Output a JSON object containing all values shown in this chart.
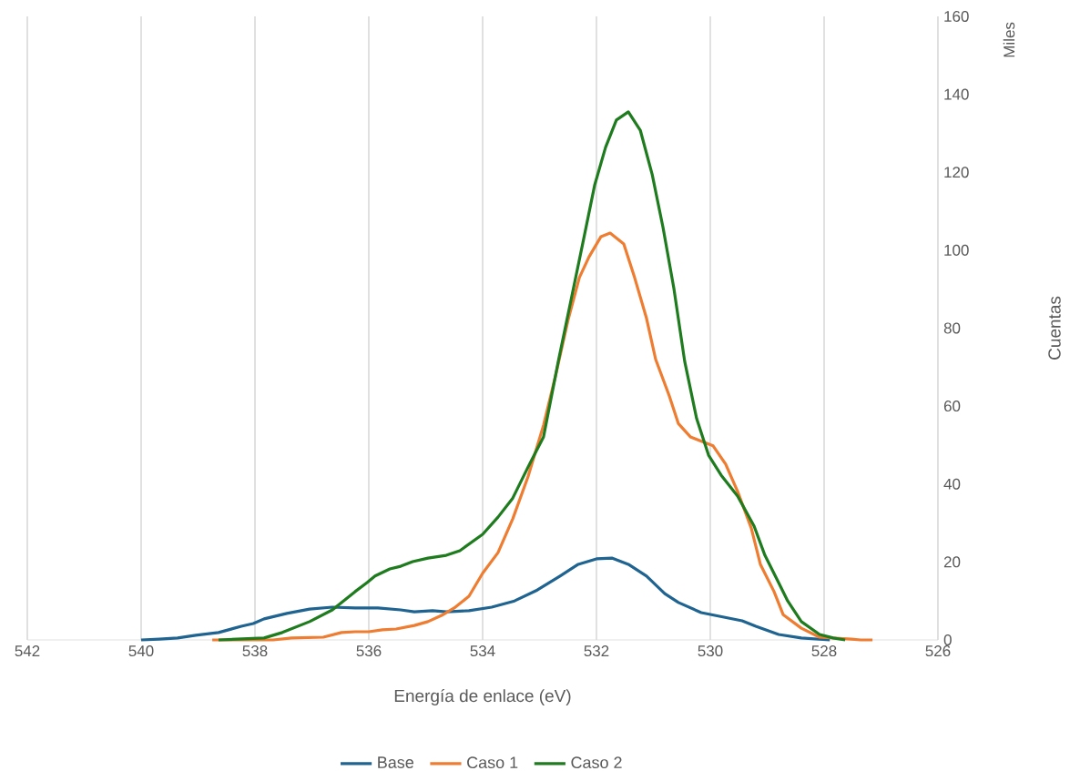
{
  "chart_data": {
    "type": "line",
    "xlabel": "Energía de enlace (eV)",
    "ylabel": "Cuentas",
    "annotations": [
      "Miles"
    ],
    "xlim": [
      542,
      526
    ],
    "xticks": [
      542,
      540,
      538,
      536,
      534,
      532,
      530,
      528,
      526
    ],
    "ylim": [
      0,
      160
    ],
    "yticks": [
      0,
      20,
      40,
      60,
      80,
      100,
      120,
      140,
      160
    ],
    "grid": "x",
    "legend": "bottom",
    "series": [
      {
        "name": "Base",
        "color": "#1f6391",
        "x": [
          540,
          539.68,
          539.36,
          539.04,
          538.64,
          538.24,
          538.03,
          537.84,
          537.44,
          537.04,
          536.64,
          536.24,
          535.84,
          535.44,
          535.2,
          534.88,
          534.64,
          534.24,
          533.84,
          533.44,
          533.04,
          532.64,
          532.32,
          532.0,
          531.73,
          531.44,
          531.12,
          530.8,
          530.56,
          530.16,
          529.68,
          529.44,
          529.2,
          528.8,
          528.4,
          527.9
        ],
        "values": [
          0,
          0.2,
          0.5,
          1.2,
          1.9,
          3.5,
          4.2,
          5.4,
          6.8,
          7.9,
          8.4,
          8.2,
          8.2,
          7.7,
          7.2,
          7.5,
          7.2,
          7.5,
          8.4,
          10.0,
          12.8,
          16.4,
          19.4,
          20.8,
          21.0,
          19.4,
          16.4,
          11.9,
          9.6,
          7.0,
          5.6,
          4.9,
          3.5,
          1.4,
          0.5,
          0
        ]
      },
      {
        "name": "Caso 1",
        "color": "#ee7d31",
        "x": [
          538.75,
          537.68,
          537.36,
          536.8,
          536.48,
          536.24,
          536.0,
          535.76,
          535.52,
          535.2,
          534.96,
          534.72,
          534.48,
          534.24,
          534.0,
          533.73,
          533.47,
          533.2,
          532.93,
          532.72,
          532.5,
          532.3,
          532.13,
          531.92,
          531.76,
          531.52,
          531.33,
          531.12,
          530.96,
          530.72,
          530.56,
          530.35,
          529.95,
          529.73,
          529.52,
          529.28,
          529.12,
          528.88,
          528.72,
          528.4,
          528.08,
          527.52,
          527.36,
          527.15
        ],
        "values": [
          0,
          0,
          0.5,
          0.7,
          1.9,
          2.1,
          2.1,
          2.6,
          2.8,
          3.7,
          4.7,
          6.3,
          8.4,
          11.2,
          17.1,
          22.4,
          31.1,
          42.0,
          55.1,
          67.7,
          82,
          93,
          98.3,
          103.5,
          104.4,
          101.6,
          93,
          82.5,
          72,
          62.6,
          55.5,
          52.1,
          49.8,
          45.1,
          38.1,
          28.7,
          19.4,
          12.4,
          6.5,
          3.0,
          0.7,
          0.2,
          0,
          0
        ]
      },
      {
        "name": "Caso 2",
        "color": "#1e7b1e",
        "x": [
          538.64,
          538.32,
          537.84,
          537.52,
          537.04,
          536.64,
          536.24,
          536.03,
          535.89,
          535.63,
          535.44,
          535.23,
          534.96,
          534.64,
          534.4,
          534.0,
          533.73,
          533.47,
          533.2,
          532.93,
          532.67,
          532.45,
          532.24,
          532.03,
          531.84,
          531.65,
          531.44,
          531.23,
          531.02,
          530.83,
          530.64,
          530.45,
          530.24,
          530.03,
          529.81,
          529.52,
          529.23,
          529.04,
          528.8,
          528.64,
          528.4,
          528.08,
          527.84,
          527.63
        ],
        "values": [
          0,
          0.2,
          0.5,
          1.9,
          4.7,
          7.7,
          12.4,
          14.7,
          16.4,
          18.2,
          18.9,
          20.1,
          21.0,
          21.7,
          22.9,
          27.1,
          31.5,
          36.4,
          44.4,
          52.1,
          71.5,
          87,
          101.8,
          116.8,
          126.4,
          133.4,
          135.5,
          130.8,
          119.4,
          105.8,
          90.2,
          71.5,
          56.8,
          47.4,
          42.3,
          36.9,
          29.2,
          21.7,
          14.7,
          10.0,
          4.7,
          1.4,
          0.5,
          0
        ]
      }
    ]
  }
}
